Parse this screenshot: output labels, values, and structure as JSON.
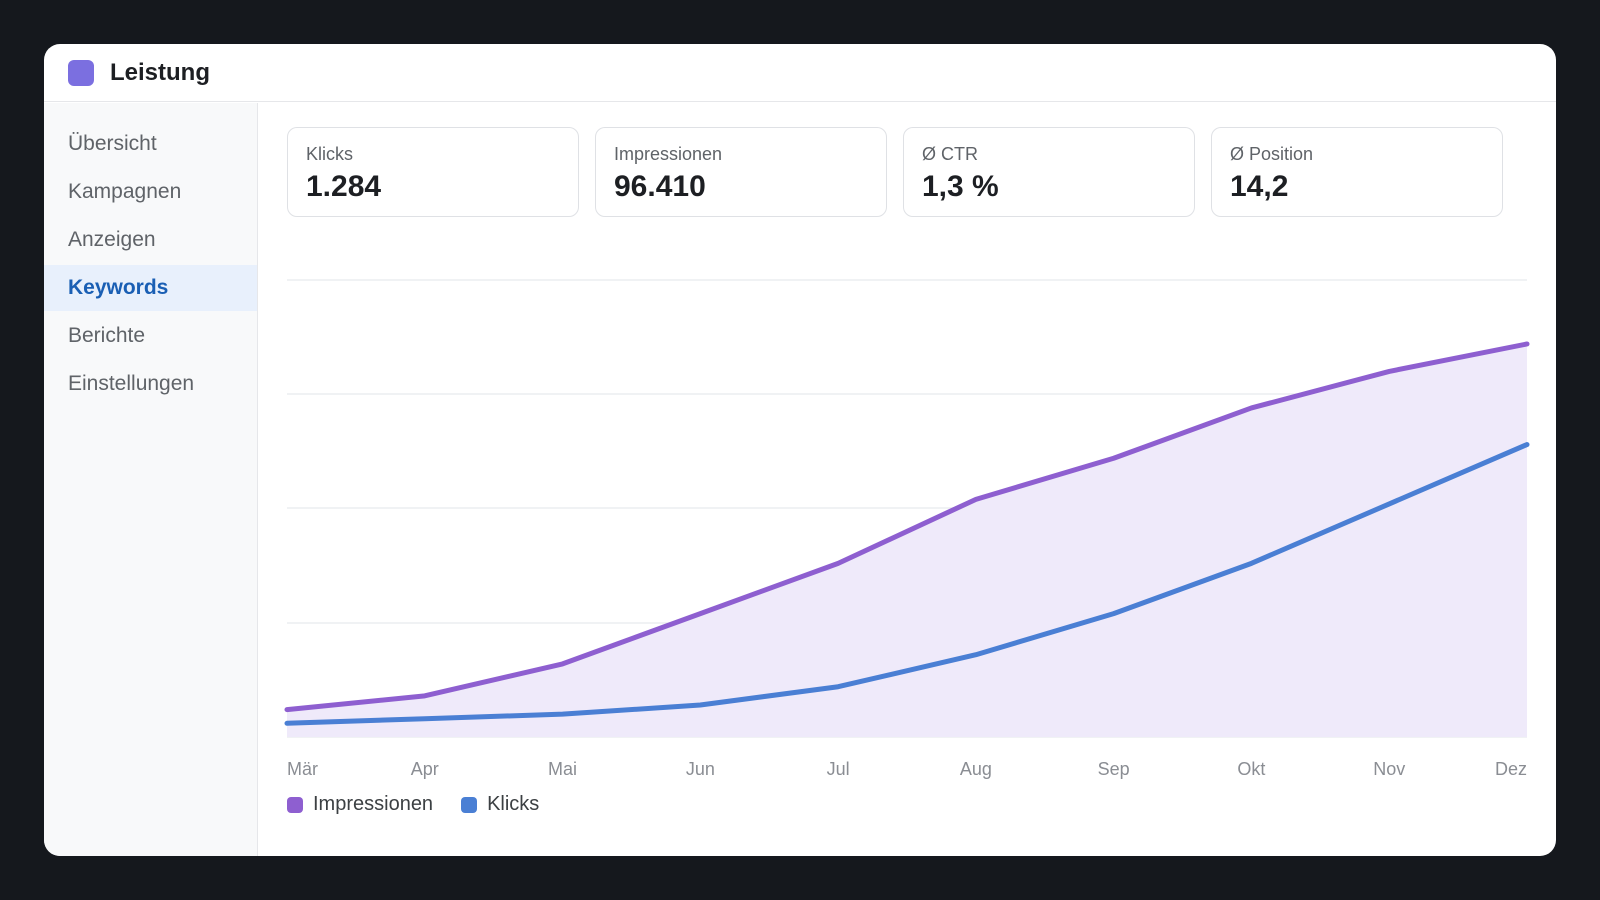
{
  "app": {
    "title": "Leistung",
    "icon": "app-square-icon",
    "icon_color": "#7b6fe0"
  },
  "sidebar": {
    "items": [
      {
        "label": "Übersicht",
        "active": false
      },
      {
        "label": "Kampagnen",
        "active": false
      },
      {
        "label": "Anzeigen",
        "active": false
      },
      {
        "label": "Keywords",
        "active": true
      },
      {
        "label": "Berichte",
        "active": false
      },
      {
        "label": "Einstellungen",
        "active": false
      }
    ]
  },
  "kpis": [
    {
      "label": "Klicks",
      "value": "1.284"
    },
    {
      "label": "Impressionen",
      "value": "96.410"
    },
    {
      "label": "Ø CTR",
      "value": "1,3 %"
    },
    {
      "label": "Ø Position",
      "value": "14,2"
    }
  ],
  "colors": {
    "impressions": "#8e5fd0",
    "clicks": "#4a7fd4",
    "impressions_fill": "#efeafa",
    "active_nav_bg": "#e8f0fc",
    "active_nav_text": "#1a5fb4"
  },
  "chart_data": {
    "type": "line",
    "categories": [
      "Mär",
      "Apr",
      "Mai",
      "Jun",
      "Jul",
      "Aug",
      "Sep",
      "Okt",
      "Nov",
      "Dez"
    ],
    "series": [
      {
        "name": "Impressionen",
        "values": [
          6,
          9,
          16,
          27,
          38,
          52,
          61,
          72,
          80,
          86
        ],
        "area": true,
        "color": "#8e5fd0"
      },
      {
        "name": "Klicks",
        "values": [
          3,
          4,
          5,
          7,
          11,
          18,
          27,
          38,
          51,
          64
        ],
        "area": false,
        "color": "#4a7fd4"
      }
    ],
    "ylim": [
      0,
      100
    ],
    "grid": true,
    "legend": "bottom-left"
  }
}
